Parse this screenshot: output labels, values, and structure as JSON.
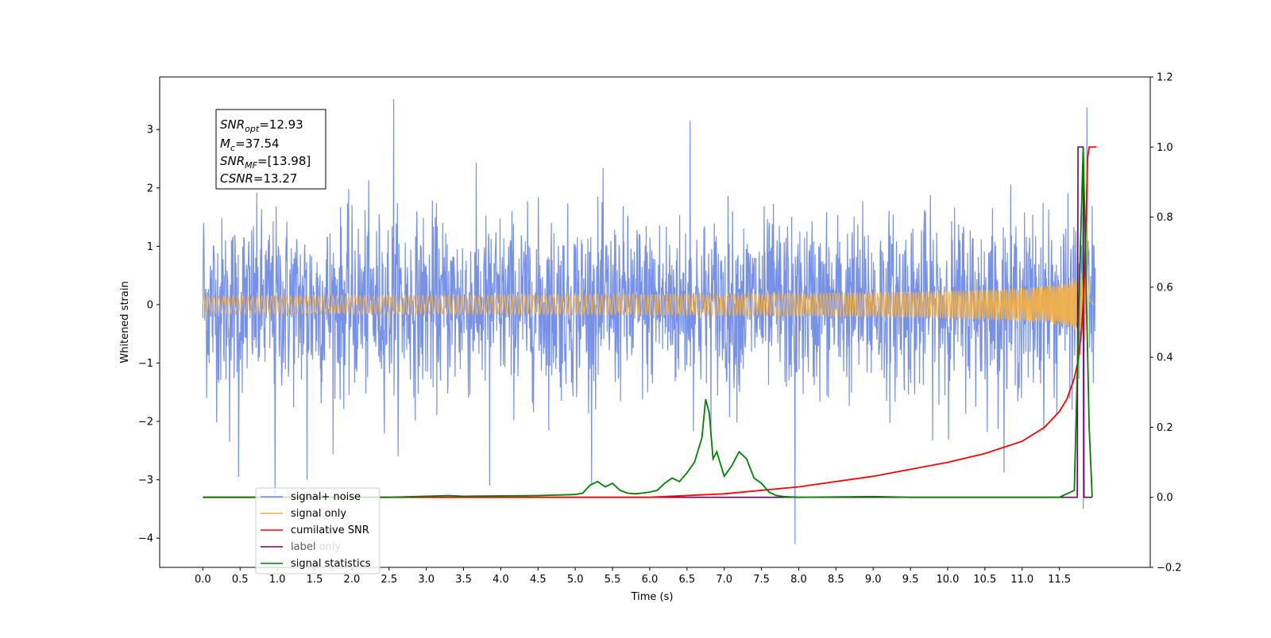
{
  "colors": {
    "noise": "#6b88e6",
    "signal": "#f5b041",
    "cumulative": "#ff0000",
    "label": "#6a006a",
    "statistics": "#008000",
    "axis": "#000000"
  },
  "chart_data": {
    "type": "line",
    "xlabel": "Time (s)",
    "ylabel": "Whitened strain",
    "y2label": "",
    "xlim": [
      -0.58,
      12.72
    ],
    "ylim": [
      -4.5,
      3.9
    ],
    "y2lim": [
      -0.2,
      1.2
    ],
    "x_ticks": [
      "0.0",
      "0.5",
      "1.0",
      "1.5",
      "2.0",
      "2.5",
      "3.0",
      "3.5",
      "4.0",
      "4.5",
      "5.0",
      "5.5",
      "6.0",
      "6.5",
      "7.0",
      "7.5",
      "8.0",
      "8.5",
      "9.0",
      "9.5",
      "10.0",
      "10.5",
      "11.0",
      "11.5"
    ],
    "y_ticks": [
      "−4",
      "−3",
      "−2",
      "−1",
      "0",
      "1",
      "2",
      "3"
    ],
    "y2_ticks": [
      "−0.2",
      "0.0",
      "0.2",
      "0.4",
      "0.6",
      "0.8",
      "1.0",
      "1.2"
    ],
    "grid": false,
    "legend_position": "lower-left",
    "annotation": {
      "snr_opt": "=12.93",
      "mc": "=37.54",
      "snr_mf": "=[13.98]",
      "csnr": "=13.27"
    },
    "series": [
      {
        "name": "signal+ noise",
        "axis": "left",
        "description_values": "white noise, sigma≈0.75, range about -4.1 to 3.5",
        "extremes": [
          [
            0.01,
            1.4
          ],
          [
            0.36,
            -2.35
          ],
          [
            0.48,
            -2.95
          ],
          [
            0.97,
            -3.25
          ],
          [
            1.4,
            -3.0
          ],
          [
            2.56,
            3.52
          ],
          [
            3.85,
            -3.1
          ],
          [
            6.54,
            3.15
          ],
          [
            7.95,
            -4.1
          ],
          [
            11.87,
            3.38
          ],
          [
            11.82,
            -3.5
          ]
        ]
      },
      {
        "name": "signal only",
        "axis": "left",
        "x_range": [
          0.0,
          11.98
        ],
        "merger_time": 11.86,
        "peak_amplitude": 2.4
      },
      {
        "name": "cumilative SNR",
        "axis": "right",
        "x": [
          0.0,
          6.0,
          7.0,
          8.0,
          9.0,
          10.0,
          10.5,
          11.0,
          11.3,
          11.5,
          11.6,
          11.7,
          11.75,
          11.8,
          11.83,
          11.86,
          11.88,
          11.9,
          12.0
        ],
        "y": [
          0.0,
          0.0,
          0.01,
          0.03,
          0.06,
          0.1,
          0.125,
          0.16,
          0.2,
          0.245,
          0.28,
          0.34,
          0.39,
          0.48,
          0.6,
          0.8,
          0.97,
          1.0,
          1.0
        ]
      },
      {
        "name": "label",
        "axis": "right",
        "x": [
          0.0,
          11.74,
          11.75,
          11.82,
          11.83,
          11.94
        ],
        "y": [
          0.0,
          0.0,
          1.0,
          1.0,
          0.0,
          0.0
        ]
      },
      {
        "name": "label only",
        "axis": "right",
        "hidden": true
      },
      {
        "name": "signal statistics",
        "axis": "right",
        "x": [
          0.0,
          2.5,
          3.0,
          3.3,
          3.5,
          4.0,
          4.5,
          5.0,
          5.1,
          5.2,
          5.3,
          5.4,
          5.5,
          5.6,
          5.7,
          5.8,
          5.9,
          6.0,
          6.1,
          6.2,
          6.3,
          6.4,
          6.5,
          6.6,
          6.7,
          6.75,
          6.8,
          6.85,
          6.9,
          7.0,
          7.1,
          7.2,
          7.3,
          7.4,
          7.5,
          7.6,
          7.7,
          7.8,
          8.0,
          9.0,
          9.5,
          11.5,
          11.7,
          11.78,
          11.82,
          11.86,
          11.9,
          11.94
        ],
        "y": [
          0.0,
          0.0,
          0.003,
          0.005,
          0.003,
          0.004,
          0.005,
          0.008,
          0.012,
          0.035,
          0.045,
          0.03,
          0.04,
          0.02,
          0.012,
          0.01,
          0.012,
          0.015,
          0.02,
          0.04,
          0.055,
          0.045,
          0.07,
          0.1,
          0.17,
          0.28,
          0.24,
          0.11,
          0.13,
          0.06,
          0.09,
          0.13,
          0.11,
          0.055,
          0.04,
          0.015,
          0.005,
          0.002,
          0.0,
          0.002,
          0.0,
          0.0,
          0.02,
          0.7,
          1.0,
          0.6,
          0.2,
          0.0
        ]
      }
    ]
  }
}
